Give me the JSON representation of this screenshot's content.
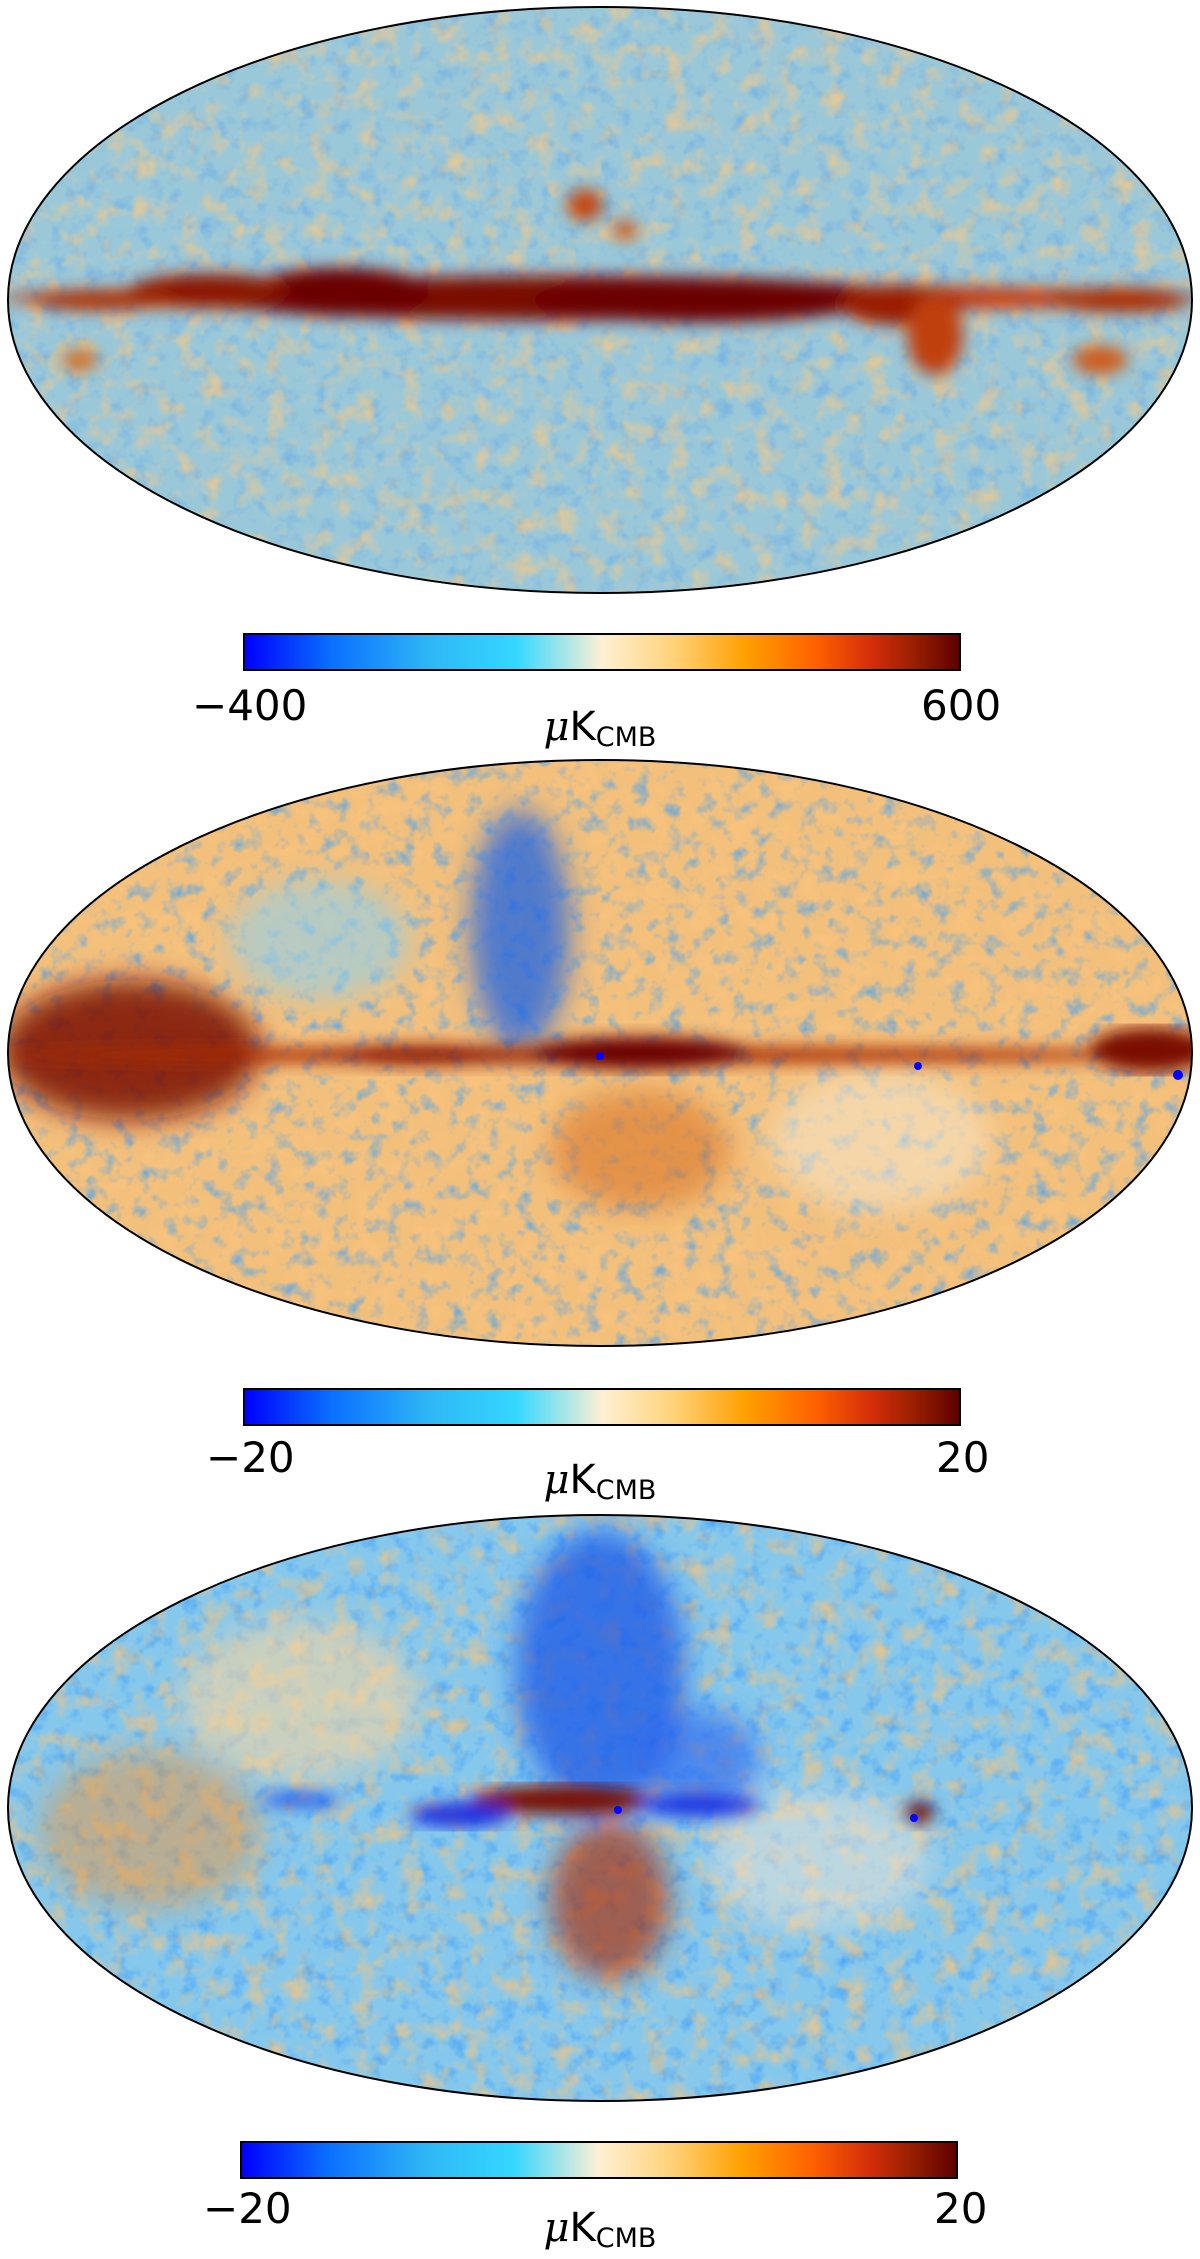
{
  "panels": [
    {
      "id": "intensity",
      "colorbar": {
        "min_label": "−400",
        "max_label": "600"
      },
      "unit": {
        "prefix": "μ",
        "main": "K",
        "sub": "CMB"
      }
    },
    {
      "id": "polarization-q",
      "colorbar": {
        "min_label": "−20",
        "max_label": "20"
      },
      "unit": {
        "prefix": "μ",
        "main": "K",
        "sub": "CMB"
      }
    },
    {
      "id": "polarization-u",
      "colorbar": {
        "min_label": "−20",
        "max_label": "20"
      },
      "unit": {
        "prefix": "μ",
        "main": "K",
        "sub": "CMB"
      }
    }
  ],
  "colormap": [
    "#0000ff",
    "#0a6fff",
    "#2fb7f5",
    "#34d7ff",
    "#fff0d4",
    "#ffd27a",
    "#ffa000",
    "#ff6000",
    "#d22d0a",
    "#961e00",
    "#5e0000"
  ]
}
